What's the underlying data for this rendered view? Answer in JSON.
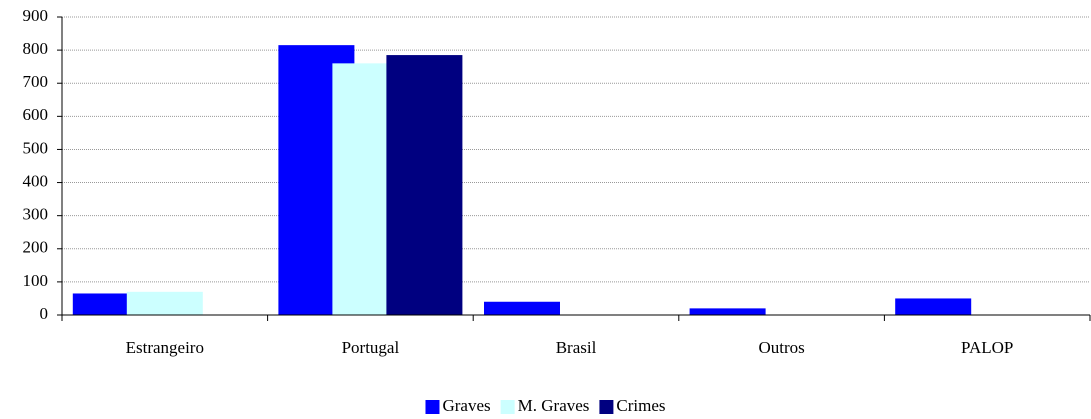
{
  "chart_data": {
    "type": "bar",
    "categories": [
      "Estrangeiro",
      "Portugal",
      "Brasil",
      "Outros",
      "PALOP"
    ],
    "series": [
      {
        "name": "Graves",
        "color": "#0000ff",
        "values": [
          65,
          815,
          40,
          20,
          50
        ]
      },
      {
        "name": "M. Graves",
        "color": "#ccffff",
        "values": [
          70,
          760,
          0,
          0,
          0
        ]
      },
      {
        "name": "Crimes",
        "color": "#000080",
        "values": [
          0,
          785,
          0,
          0,
          0
        ]
      }
    ],
    "ylim": [
      0,
      900
    ],
    "yticks": [
      0,
      100,
      200,
      300,
      400,
      500,
      600,
      700,
      800,
      900
    ],
    "grid": true,
    "legend": "bottom"
  }
}
